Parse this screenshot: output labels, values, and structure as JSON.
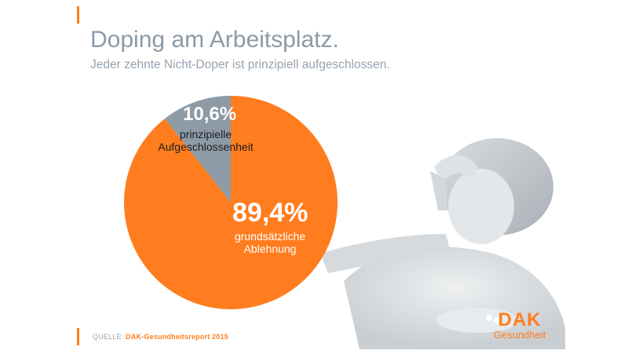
{
  "header": {
    "title": "Doping am Arbeitsplatz.",
    "subtitle": "Jeder zehnte Nicht-Doper ist prinzipiell aufgeschlossen."
  },
  "chart_data": {
    "type": "pie",
    "slices": [
      {
        "label": "prinzipielle Aufgeschlossenheit",
        "label_lines": [
          "prinzipielle",
          "Aufgeschlossenheit"
        ],
        "value": 10.6,
        "value_label": "10,6%",
        "color": "#8d9ba7"
      },
      {
        "label": "grundsätzliche Ablehnung",
        "label_lines": [
          "grundsätzliche",
          "Ablehnung"
        ],
        "value": 89.4,
        "value_label": "89,4%",
        "color": "#ff7d1f"
      }
    ],
    "title": "",
    "legend": "none"
  },
  "footer": {
    "source_prefix": "QUELLE:",
    "source_text": "DAK-Gesundheitsreport 2015"
  },
  "logo": {
    "main": "DAK",
    "sub": "Gesundheit",
    "color": "#ff7d1f"
  },
  "colors": {
    "accent": "#ff7d1f",
    "gray": "#8d9ba7"
  }
}
